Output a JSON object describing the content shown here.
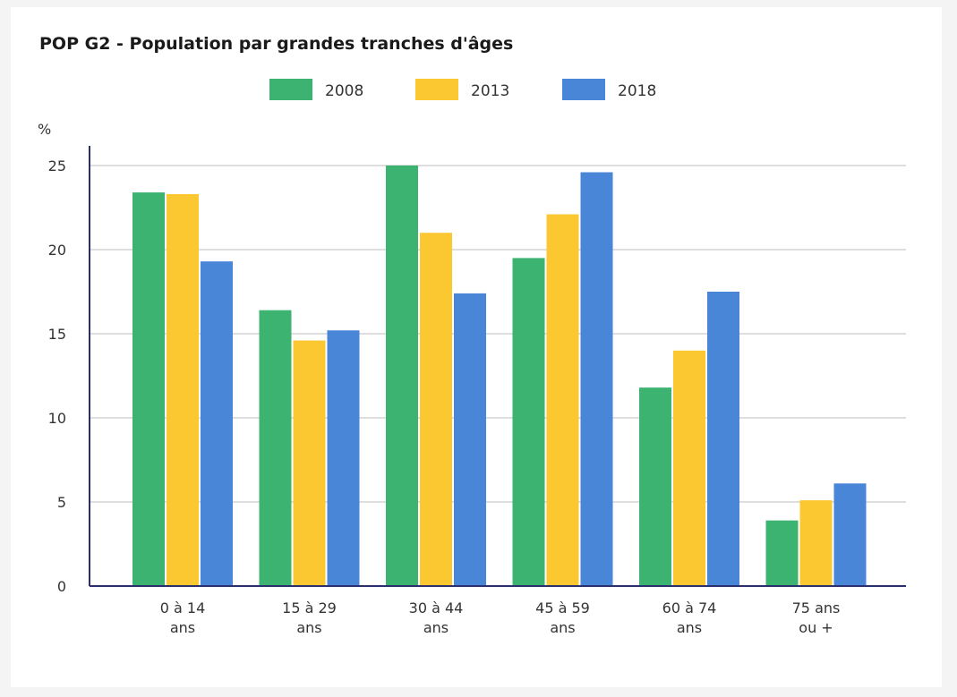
{
  "chart_data": {
    "type": "bar",
    "title": "POP G2 - Population par grandes tranches d'âges",
    "ylabel": "%",
    "ylim": [
      0,
      25
    ],
    "yticks": [
      0,
      5,
      10,
      15,
      20,
      25
    ],
    "grid": true,
    "legend_position": "top",
    "categories": [
      [
        "0 à 14",
        "ans"
      ],
      [
        "15 à 29",
        "ans"
      ],
      [
        "30 à 44",
        "ans"
      ],
      [
        "45 à 59",
        "ans"
      ],
      [
        "60 à 74",
        "ans"
      ],
      [
        "75 ans",
        "ou +"
      ]
    ],
    "series": [
      {
        "name": "2008",
        "color": "#3cb371",
        "values": [
          23.4,
          16.4,
          25.0,
          19.5,
          11.8,
          3.9
        ]
      },
      {
        "name": "2013",
        "color": "#fbc832",
        "values": [
          23.3,
          14.6,
          21.0,
          22.1,
          14.0,
          5.1
        ]
      },
      {
        "name": "2018",
        "color": "#4a86d8",
        "values": [
          19.3,
          15.2,
          17.4,
          24.6,
          17.5,
          6.1
        ]
      }
    ]
  }
}
